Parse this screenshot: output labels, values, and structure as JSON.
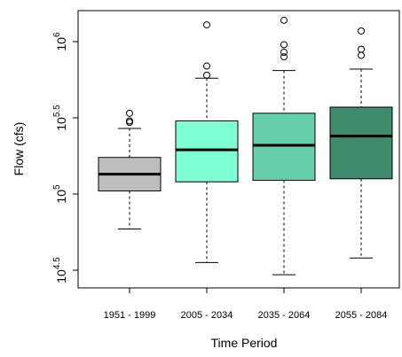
{
  "chart_data": {
    "type": "box",
    "xlabel": "Time Period",
    "ylabel": "Flow (cfs)",
    "y_scale": "log10",
    "ylim": [
      4.43,
      6.16
    ],
    "y_ticks": [
      {
        "value": 4.5,
        "base": "10",
        "exponent": "4.5"
      },
      {
        "value": 5.0,
        "base": "10",
        "exponent": "5"
      },
      {
        "value": 5.5,
        "base": "10",
        "exponent": "5.5"
      },
      {
        "value": 6.0,
        "base": "10",
        "exponent": "6"
      }
    ],
    "categories": [
      "1951 - 1999",
      "2005 - 2034",
      "2035 - 2064",
      "2055 - 2084"
    ],
    "boxes": [
      {
        "category": "1951 - 1999",
        "whisker_low": 4.77,
        "q1": 5.02,
        "median": 5.13,
        "q3": 5.24,
        "whisker_high": 5.43,
        "outliers": [
          5.47,
          5.48,
          5.53
        ],
        "fill": "#bebebe"
      },
      {
        "category": "2005 - 2034",
        "whisker_low": 4.55,
        "q1": 5.08,
        "median": 5.29,
        "q3": 5.48,
        "whisker_high": 5.76,
        "outliers": [
          5.78,
          5.84,
          6.11
        ],
        "fill": "#7fffd4"
      },
      {
        "category": "2035 - 2064",
        "whisker_low": 4.47,
        "q1": 5.09,
        "median": 5.32,
        "q3": 5.53,
        "whisker_high": 5.81,
        "outliers": [
          5.9,
          5.93,
          5.98,
          6.14
        ],
        "fill": "#66cdaa"
      },
      {
        "category": "2055 - 2084",
        "whisker_low": 4.58,
        "q1": 5.1,
        "median": 5.38,
        "q3": 5.57,
        "whisker_high": 5.82,
        "outliers": [
          5.91,
          5.95,
          6.07
        ],
        "fill": "#3e8b6e"
      }
    ]
  }
}
